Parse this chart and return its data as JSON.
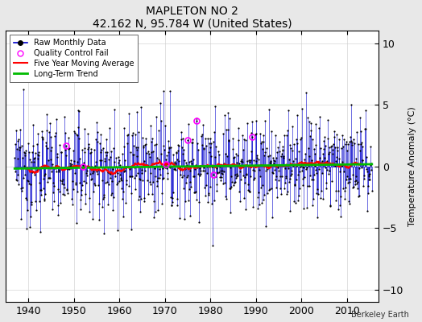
{
  "title": "MAPLETON NO 2",
  "subtitle": "42.162 N, 95.784 W (United States)",
  "ylabel": "Temperature Anomaly (°C)",
  "credit": "Berkeley Earth",
  "xlim": [
    1935,
    2017
  ],
  "ylim": [
    -11,
    11
  ],
  "yticks": [
    -10,
    -5,
    0,
    5,
    10
  ],
  "xticks": [
    1940,
    1950,
    1960,
    1970,
    1980,
    1990,
    2000,
    2010
  ],
  "line_color": "#0000cc",
  "dot_color": "#000000",
  "moving_avg_color": "#ff0000",
  "trend_color": "#00bb00",
  "qc_fail_color": "#ff00ff",
  "background_color": "#e8e8e8",
  "plot_bg_color": "#ffffff"
}
